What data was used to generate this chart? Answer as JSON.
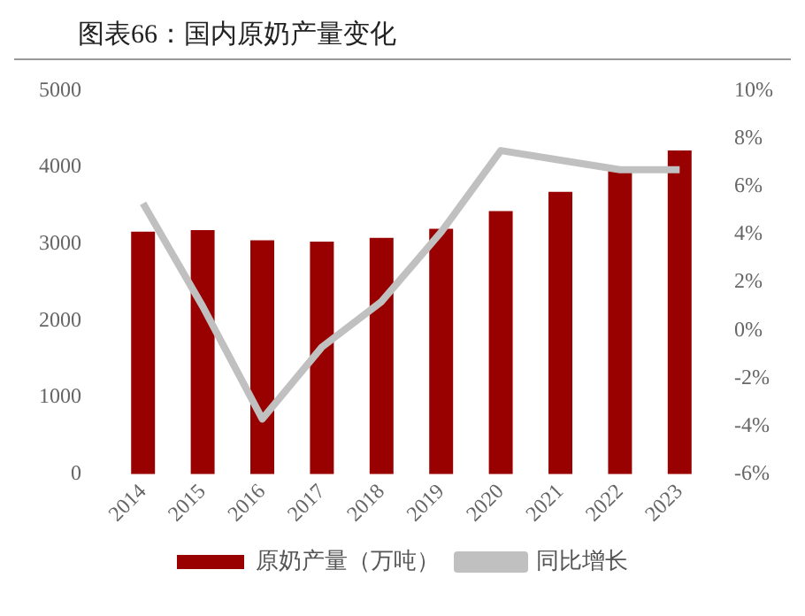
{
  "chart_data": {
    "type": "bar",
    "title": "图表66：国内原奶产量变化",
    "categories": [
      "2014",
      "2015",
      "2016",
      "2017",
      "2018",
      "2019",
      "2020",
      "2021",
      "2022",
      "2023"
    ],
    "series": [
      {
        "name": "原奶产量（万吨）",
        "color": "#990000",
        "values": [
          3160,
          3180,
          3050,
          3030,
          3080,
          3200,
          3430,
          3680,
          3970,
          4220
        ]
      },
      {
        "name": "同比增长",
        "type": "line",
        "axis": "y2",
        "color": "#c0c0c0",
        "values": [
          5.3,
          1.0,
          -3.7,
          -0.7,
          1.2,
          4.1,
          7.5,
          7.1,
          6.7,
          6.7
        ]
      }
    ],
    "ylim": [
      0,
      5000
    ],
    "yticks": [
      0,
      1000,
      2000,
      3000,
      4000,
      5000
    ],
    "y2lim": [
      -6,
      10
    ],
    "y2ticks": [
      {
        "value": -6,
        "label": "-6%"
      },
      {
        "value": -4,
        "label": "-4%"
      },
      {
        "value": -2,
        "label": "-2%"
      },
      {
        "value": 0,
        "label": "0%"
      },
      {
        "value": 2,
        "label": "2%"
      },
      {
        "value": 4,
        "label": "4%"
      },
      {
        "value": 6,
        "label": "6%"
      },
      {
        "value": 8,
        "label": "8%"
      },
      {
        "value": 10,
        "label": "10%"
      }
    ],
    "legend": "bottom"
  }
}
